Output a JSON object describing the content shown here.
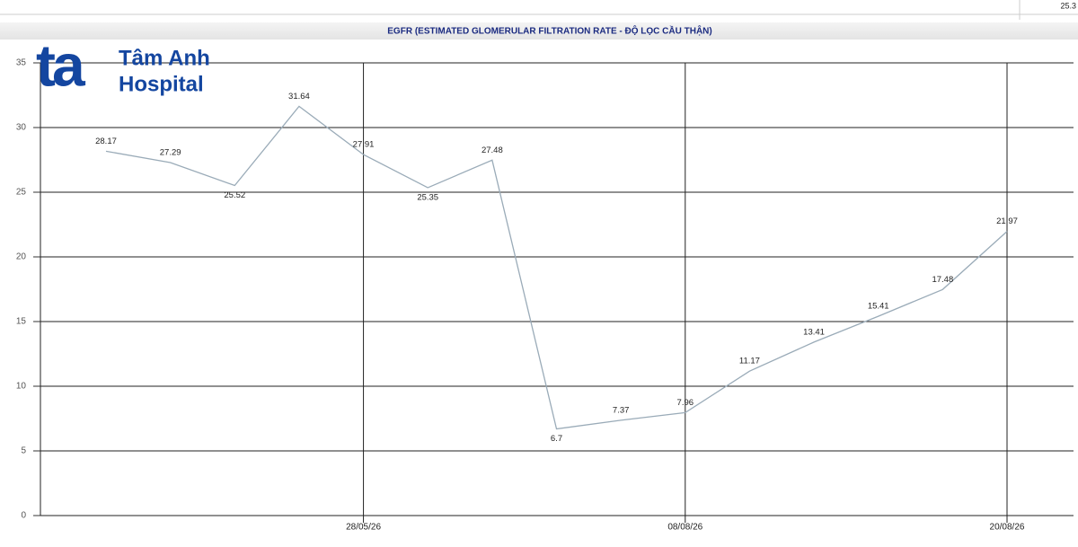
{
  "corner_label": "25.3",
  "logo": {
    "mark": "ta",
    "line1": "Tâm Anh",
    "line2": "Hospital"
  },
  "chart_data": {
    "type": "line",
    "title": "EGFR (ESTIMATED GLOMERULAR FILTRATION RATE - ĐỘ LỌC CẦU THẬN)",
    "categories": [
      null,
      null,
      null,
      null,
      "28/05/26",
      null,
      null,
      null,
      null,
      "08/08/26",
      null,
      null,
      null,
      null,
      "20/08/26"
    ],
    "values": [
      28.17,
      27.29,
      25.52,
      31.64,
      27.91,
      25.35,
      27.48,
      6.7,
      7.37,
      7.96,
      11.17,
      13.41,
      15.41,
      17.48,
      21.97
    ],
    "color": "#9aabb8",
    "ylim": [
      0,
      35
    ],
    "yticks": [
      0,
      5,
      10,
      15,
      20,
      25,
      30,
      35
    ],
    "grid": true
  }
}
